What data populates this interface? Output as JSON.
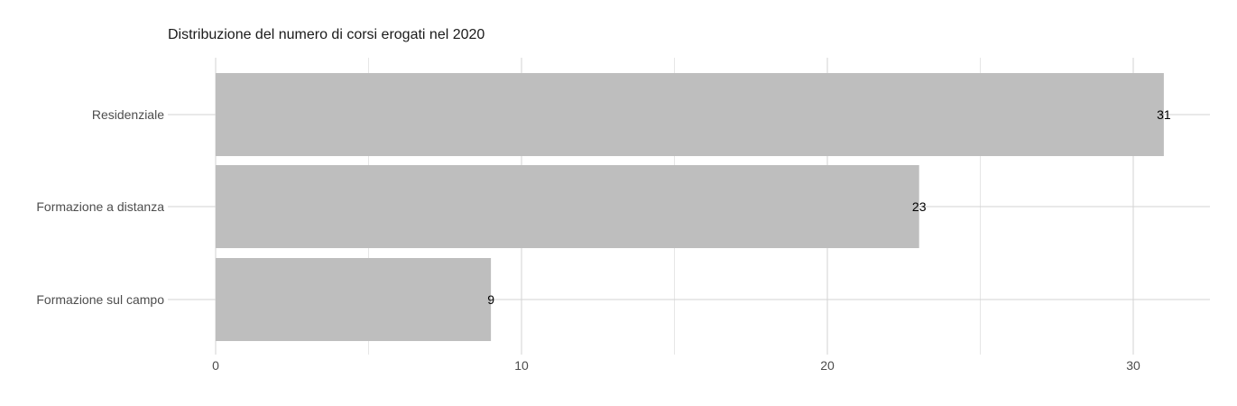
{
  "chart_data": {
    "type": "bar",
    "orientation": "horizontal",
    "title": "Distribuzione del numero di corsi erogati nel 2020",
    "xlabel": "",
    "ylabel": "",
    "categories": [
      "Residenziale",
      "Formazione a distanza",
      "Formazione sul campo"
    ],
    "values": [
      31,
      23,
      9
    ],
    "data_labels": [
      "31",
      "23",
      "9"
    ],
    "xlim": [
      0,
      32.5
    ],
    "x_ticks": [
      0,
      10,
      20,
      30
    ],
    "x_tick_labels": [
      "0",
      "10",
      "20",
      "30"
    ],
    "grid": true,
    "legend": "none",
    "colors": {
      "bar": "#bebebe",
      "grid_major": "#d3d3d3",
      "grid_minor": "#e6e6e6"
    }
  }
}
